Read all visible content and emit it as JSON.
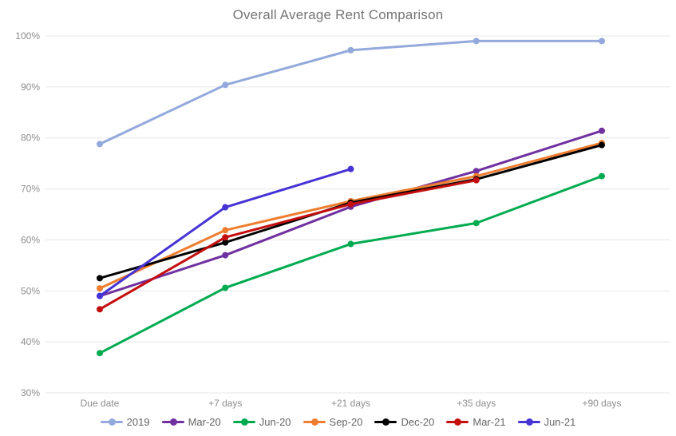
{
  "chart_data": {
    "type": "line",
    "title": "Overall Average Rent Comparison",
    "categories": [
      "Due date",
      "+7 days",
      "+21 days",
      "+35 days",
      "+90 days"
    ],
    "series": [
      {
        "name": "2019",
        "color": "#93a9dc",
        "values": [
          78.8,
          90.4,
          97.2,
          99.0,
          99.0
        ]
      },
      {
        "name": "Mar-20",
        "color": "#7030a0",
        "values": [
          49.0,
          57.0,
          66.5,
          73.5,
          81.4
        ]
      },
      {
        "name": "Jun-20",
        "color": "#00ab50",
        "values": [
          37.8,
          50.6,
          59.2,
          63.3,
          72.5
        ]
      },
      {
        "name": "Sep-20",
        "color": "#ee7d2f",
        "values": [
          50.5,
          61.9,
          67.6,
          72.5,
          79.0
        ]
      },
      {
        "name": "Dec-20",
        "color": "#000000",
        "values": [
          52.5,
          59.5,
          67.3,
          71.9,
          78.6
        ]
      },
      {
        "name": "Mar-21",
        "color": "#c40e0e",
        "values": [
          46.4,
          60.5,
          67.0,
          71.7,
          null
        ]
      },
      {
        "name": "Jun-21",
        "color": "#4533d6",
        "values": [
          49.0,
          66.4,
          73.9,
          null,
          null
        ]
      }
    ],
    "xlabel": "",
    "ylabel": "",
    "ylim": [
      30,
      100
    ],
    "ytick_step": 10,
    "ytick_suffix": "%",
    "grid": true,
    "legend_position": "bottom",
    "colors": {
      "title_text": "#757575",
      "tick_text": "#8e8e8e",
      "legend_text": "#666666",
      "gridline": "#e7e7e7",
      "background": "#ffffff"
    }
  }
}
